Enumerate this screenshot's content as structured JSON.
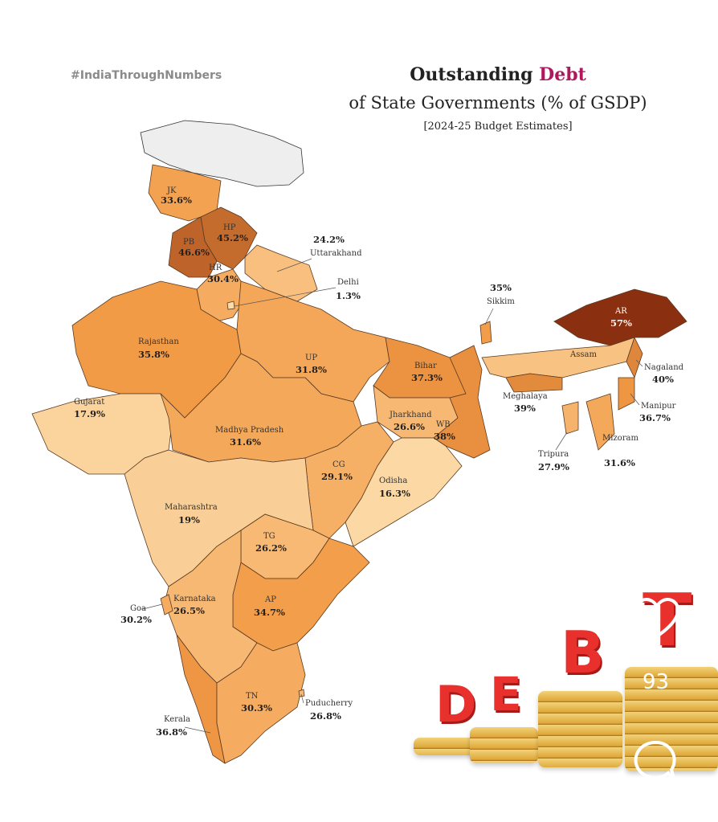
{
  "hashtag": "#IndiaThroughNumbers",
  "title": {
    "part1": "Outstanding ",
    "accent": "Debt",
    "line2": "of State Governments (% of GSDP)",
    "line3": "[2024-25 Budget Estimates]",
    "accent_color": "#b0185e"
  },
  "color_scale": {
    "low": "#fcdcaa",
    "mid": "#f29a45",
    "high": "#8a3010",
    "no_data": "#eeeeee"
  },
  "states": [
    {
      "id": "JK",
      "label": "JK",
      "value": 33.6,
      "text": "33.6%"
    },
    {
      "id": "HP",
      "label": "HP",
      "value": 45.2,
      "text": "45.2%"
    },
    {
      "id": "PB",
      "label": "PB",
      "value": 46.6,
      "text": "46.6%"
    },
    {
      "id": "UK",
      "label": "Uttarakhand",
      "value": 24.2,
      "text": "24.2%"
    },
    {
      "id": "HR",
      "label": "HR",
      "value": 30.4,
      "text": "30.4%"
    },
    {
      "id": "DL",
      "label": "Delhi",
      "value": 1.3,
      "text": "1.3%"
    },
    {
      "id": "RJ",
      "label": "Rajasthan",
      "value": 35.8,
      "text": "35.8%"
    },
    {
      "id": "UP",
      "label": "UP",
      "value": 31.8,
      "text": "31.8%"
    },
    {
      "id": "GJ",
      "label": "Gujarat",
      "value": 17.9,
      "text": "17.9%"
    },
    {
      "id": "MP",
      "label": "Madhya Pradesh",
      "value": 31.6,
      "text": "31.6%"
    },
    {
      "id": "BR",
      "label": "Bihar",
      "value": 37.3,
      "text": "37.3%"
    },
    {
      "id": "JH",
      "label": "Jharkhand",
      "value": 26.6,
      "text": "26.6%"
    },
    {
      "id": "WB",
      "label": "WB",
      "value": 38,
      "text": "38%"
    },
    {
      "id": "CG",
      "label": "CG",
      "value": 29.1,
      "text": "29.1%"
    },
    {
      "id": "OD",
      "label": "Odisha",
      "value": 16.3,
      "text": "16.3%"
    },
    {
      "id": "MH",
      "label": "Maharashtra",
      "value": 19,
      "text": "19%"
    },
    {
      "id": "TG",
      "label": "TG",
      "value": 26.2,
      "text": "26.2%"
    },
    {
      "id": "AP",
      "label": "AP",
      "value": 34.7,
      "text": "34.7%"
    },
    {
      "id": "KA",
      "label": "Karnataka",
      "value": 26.5,
      "text": "26.5%"
    },
    {
      "id": "GA",
      "label": "Goa",
      "value": 30.2,
      "text": "30.2%"
    },
    {
      "id": "KL",
      "label": "Kerala",
      "value": 36.8,
      "text": "36.8%"
    },
    {
      "id": "TN",
      "label": "TN",
      "value": 30.3,
      "text": "30.3%"
    },
    {
      "id": "PY",
      "label": "Puducherry",
      "value": 26.8,
      "text": "26.8%"
    },
    {
      "id": "SK",
      "label": "Sikkim",
      "value": 35,
      "text": "35%"
    },
    {
      "id": "AR",
      "label": "AR",
      "value": 57,
      "text": "57%"
    },
    {
      "id": "AS",
      "label": "Assam",
      "value": null,
      "text": ""
    },
    {
      "id": "NL",
      "label": "Nagaland",
      "value": 40,
      "text": "40%"
    },
    {
      "id": "MN",
      "label": "Manipur",
      "value": 36.7,
      "text": "36.7%"
    },
    {
      "id": "ML",
      "label": "Meghalaya",
      "value": 39,
      "text": "39%"
    },
    {
      "id": "MZ",
      "label": "Mizoram",
      "value": 31.6,
      "text": "31.6%"
    },
    {
      "id": "TR",
      "label": "Tripura",
      "value": 27.9,
      "text": "27.9%"
    }
  ],
  "illustration": {
    "letters": [
      "D",
      "E",
      "B",
      "T"
    ]
  },
  "overlay": {
    "like_count": "93",
    "like_icon": "heart-outline-icon",
    "comment_icon": "comment-bubble-icon"
  }
}
